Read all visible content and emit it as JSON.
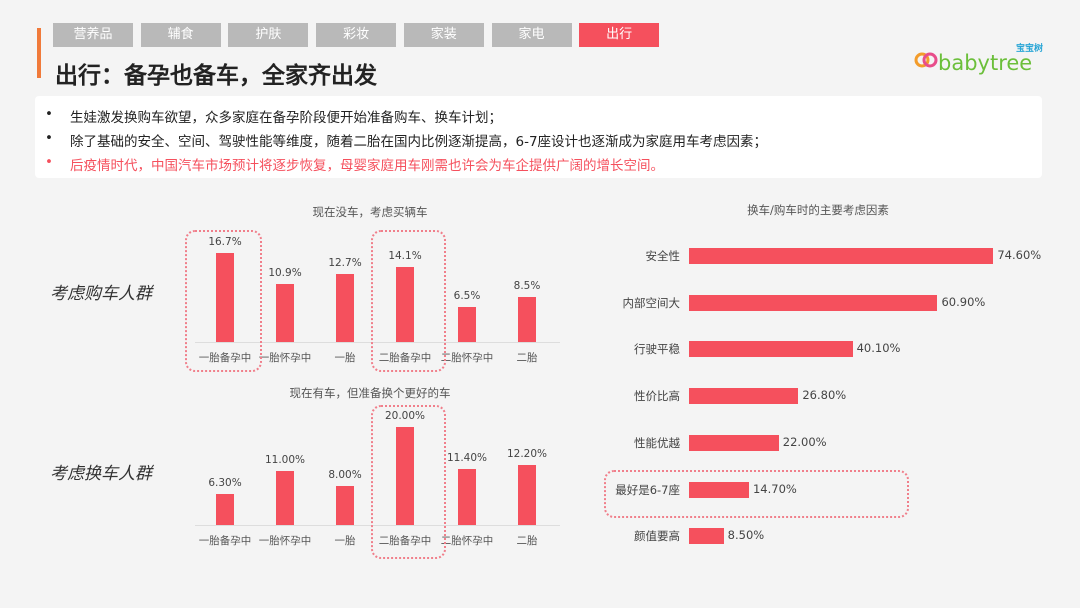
{
  "tabs": [
    {
      "label": "营养品"
    },
    {
      "label": "辅食"
    },
    {
      "label": "护肤"
    },
    {
      "label": "彩妆"
    },
    {
      "label": "家装"
    },
    {
      "label": "家电"
    },
    {
      "label": "出行",
      "active": true
    }
  ],
  "title": "出行：备孕也备车，全家齐出发",
  "logo": {
    "text": "babytree",
    "cn": "宝宝树"
  },
  "bullets": [
    {
      "text": "生娃激发换购车欲望，众多家庭在备孕阶段便开始准备购车、换车计划；",
      "highlight": false
    },
    {
      "text": "除了基础的安全、空间、驾驶性能等维度，随着二胎在国内比例逐渐提高，6-7座设计也逐渐成为家庭用车考虑因素；",
      "highlight": false
    },
    {
      "text": "后疫情时代，中国汽车市场预计将逐步恢复，母婴家庭用车刚需也许会为车企提供广阔的增长空间。",
      "highlight": true
    }
  ],
  "groups": {
    "buy": "考虑购车人群",
    "replace": "考虑换车人群"
  },
  "colors": {
    "bar": "#f5505d",
    "accent": "#f07a3a",
    "tab_inactive": "#b9b9b9"
  },
  "chart_data": [
    {
      "type": "bar",
      "title": "现在没车，考虑买辆车",
      "categories": [
        "一胎备孕中",
        "一胎怀孕中",
        "一胎",
        "二胎备孕中",
        "二胎怀孕中",
        "二胎"
      ],
      "values": [
        16.7,
        10.9,
        12.7,
        14.1,
        6.5,
        8.5
      ],
      "labels": [
        "16.7%",
        "10.9%",
        "12.7%",
        "14.1%",
        "6.5%",
        "8.5%"
      ],
      "highlighted": [
        "一胎备孕中",
        "二胎备孕中"
      ]
    },
    {
      "type": "bar",
      "title": "现在有车，但准备换个更好的车",
      "categories": [
        "一胎备孕中",
        "一胎怀孕中",
        "一胎",
        "二胎备孕中",
        "二胎怀孕中",
        "二胎"
      ],
      "values": [
        6.3,
        11.0,
        8.0,
        20.0,
        11.4,
        12.2
      ],
      "labels": [
        "6.30%",
        "11.00%",
        "8.00%",
        "20.00%",
        "11.40%",
        "12.20%"
      ],
      "highlighted": [
        "二胎备孕中"
      ]
    },
    {
      "type": "bar",
      "orientation": "horizontal",
      "title": "换车/购车时的主要考虑因素",
      "categories": [
        "安全性",
        "内部空间大",
        "行驶平稳",
        "性价比高",
        "性能优越",
        "最好是6-7座",
        "颜值要高"
      ],
      "values": [
        74.6,
        60.9,
        40.1,
        26.8,
        22.0,
        14.7,
        8.5
      ],
      "labels": [
        "74.60%",
        "60.90%",
        "40.10%",
        "26.80%",
        "22.00%",
        "14.70%",
        "8.50%"
      ],
      "highlighted": [
        "最好是6-7座"
      ]
    }
  ]
}
